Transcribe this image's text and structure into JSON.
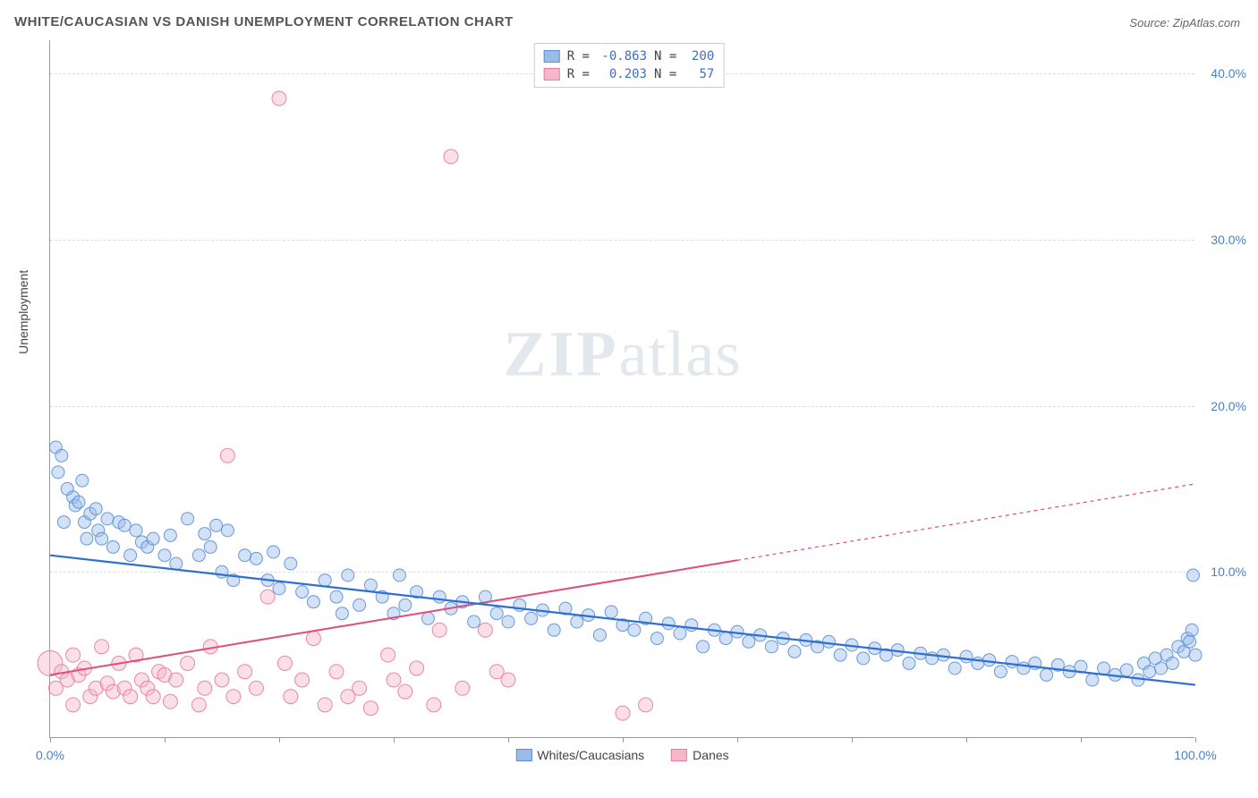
{
  "title": "WHITE/CAUCASIAN VS DANISH UNEMPLOYMENT CORRELATION CHART",
  "source_label": "Source:",
  "source_name": "ZipAtlas.com",
  "watermark_zip": "ZIP",
  "watermark_atlas": "atlas",
  "y_axis_label": "Unemployment",
  "chart": {
    "type": "scatter",
    "background_color": "#ffffff",
    "grid_color": "#dddddd",
    "axis_color": "#999999",
    "xlim": [
      0,
      100
    ],
    "ylim": [
      0,
      42
    ],
    "x_ticks": [
      0,
      10,
      20,
      30,
      40,
      50,
      60,
      70,
      80,
      90,
      100
    ],
    "x_tick_labels": {
      "0": "0.0%",
      "100": "100.0%"
    },
    "y_ticks": [
      10,
      20,
      30,
      40
    ],
    "y_tick_labels": {
      "10": "10.0%",
      "20": "20.0%",
      "30": "30.0%",
      "40": "40.0%"
    },
    "tick_label_color": "#4a7fc9",
    "tick_label_fontsize": 14,
    "axis_label_color": "#444444",
    "axis_label_fontsize": 14,
    "marker_style": "circle",
    "marker_opacity": 0.45,
    "marker_stroke_opacity": 0.9,
    "series": [
      {
        "id": "whites",
        "label": "Whites/Caucasians",
        "fill_color": "#9bbce8",
        "stroke_color": "#5a8fd6",
        "marker_radius": 7,
        "r_value": "-0.863",
        "n_value": "200",
        "trend": {
          "x1": 0,
          "y1": 11.0,
          "x2": 100,
          "y2": 3.2,
          "color": "#2e6fd1",
          "width": 2.2,
          "dash": "none"
        },
        "points": [
          [
            0.5,
            17.5
          ],
          [
            0.7,
            16.0
          ],
          [
            1.0,
            17.0
          ],
          [
            1.2,
            13.0
          ],
          [
            1.5,
            15.0
          ],
          [
            2.0,
            14.5
          ],
          [
            2.2,
            14.0
          ],
          [
            2.5,
            14.2
          ],
          [
            2.8,
            15.5
          ],
          [
            3.0,
            13.0
          ],
          [
            3.2,
            12.0
          ],
          [
            3.5,
            13.5
          ],
          [
            4.0,
            13.8
          ],
          [
            4.2,
            12.5
          ],
          [
            4.5,
            12.0
          ],
          [
            5.0,
            13.2
          ],
          [
            5.5,
            11.5
          ],
          [
            6.0,
            13.0
          ],
          [
            6.5,
            12.8
          ],
          [
            7.0,
            11.0
          ],
          [
            7.5,
            12.5
          ],
          [
            8.0,
            11.8
          ],
          [
            8.5,
            11.5
          ],
          [
            9.0,
            12.0
          ],
          [
            10.0,
            11.0
          ],
          [
            10.5,
            12.2
          ],
          [
            11.0,
            10.5
          ],
          [
            12.0,
            13.2
          ],
          [
            13.0,
            11.0
          ],
          [
            13.5,
            12.3
          ],
          [
            14.0,
            11.5
          ],
          [
            14.5,
            12.8
          ],
          [
            15.0,
            10.0
          ],
          [
            15.5,
            12.5
          ],
          [
            16.0,
            9.5
          ],
          [
            17.0,
            11.0
          ],
          [
            18.0,
            10.8
          ],
          [
            19.0,
            9.5
          ],
          [
            19.5,
            11.2
          ],
          [
            20.0,
            9.0
          ],
          [
            21.0,
            10.5
          ],
          [
            22.0,
            8.8
          ],
          [
            23.0,
            8.2
          ],
          [
            24.0,
            9.5
          ],
          [
            25.0,
            8.5
          ],
          [
            25.5,
            7.5
          ],
          [
            26.0,
            9.8
          ],
          [
            27.0,
            8.0
          ],
          [
            28.0,
            9.2
          ],
          [
            29.0,
            8.5
          ],
          [
            30.0,
            7.5
          ],
          [
            30.5,
            9.8
          ],
          [
            31.0,
            8.0
          ],
          [
            32.0,
            8.8
          ],
          [
            33.0,
            7.2
          ],
          [
            34.0,
            8.5
          ],
          [
            35.0,
            7.8
          ],
          [
            36.0,
            8.2
          ],
          [
            37.0,
            7.0
          ],
          [
            38.0,
            8.5
          ],
          [
            39.0,
            7.5
          ],
          [
            40.0,
            7.0
          ],
          [
            41.0,
            8.0
          ],
          [
            42.0,
            7.2
          ],
          [
            43.0,
            7.7
          ],
          [
            44.0,
            6.5
          ],
          [
            45.0,
            7.8
          ],
          [
            46.0,
            7.0
          ],
          [
            47.0,
            7.4
          ],
          [
            48.0,
            6.2
          ],
          [
            49.0,
            7.6
          ],
          [
            50.0,
            6.8
          ],
          [
            51.0,
            6.5
          ],
          [
            52.0,
            7.2
          ],
          [
            53.0,
            6.0
          ],
          [
            54.0,
            6.9
          ],
          [
            55.0,
            6.3
          ],
          [
            56.0,
            6.8
          ],
          [
            57.0,
            5.5
          ],
          [
            58.0,
            6.5
          ],
          [
            59.0,
            6.0
          ],
          [
            60.0,
            6.4
          ],
          [
            61.0,
            5.8
          ],
          [
            62.0,
            6.2
          ],
          [
            63.0,
            5.5
          ],
          [
            64.0,
            6.0
          ],
          [
            65.0,
            5.2
          ],
          [
            66.0,
            5.9
          ],
          [
            67.0,
            5.5
          ],
          [
            68.0,
            5.8
          ],
          [
            69.0,
            5.0
          ],
          [
            70.0,
            5.6
          ],
          [
            71.0,
            4.8
          ],
          [
            72.0,
            5.4
          ],
          [
            73.0,
            5.0
          ],
          [
            74.0,
            5.3
          ],
          [
            75.0,
            4.5
          ],
          [
            76.0,
            5.1
          ],
          [
            77.0,
            4.8
          ],
          [
            78.0,
            5.0
          ],
          [
            79.0,
            4.2
          ],
          [
            80.0,
            4.9
          ],
          [
            81.0,
            4.5
          ],
          [
            82.0,
            4.7
          ],
          [
            83.0,
            4.0
          ],
          [
            84.0,
            4.6
          ],
          [
            85.0,
            4.2
          ],
          [
            86.0,
            4.5
          ],
          [
            87.0,
            3.8
          ],
          [
            88.0,
            4.4
          ],
          [
            89.0,
            4.0
          ],
          [
            90.0,
            4.3
          ],
          [
            91.0,
            3.5
          ],
          [
            92.0,
            4.2
          ],
          [
            93.0,
            3.8
          ],
          [
            94.0,
            4.1
          ],
          [
            95.0,
            3.5
          ],
          [
            95.5,
            4.5
          ],
          [
            96.0,
            4.0
          ],
          [
            96.5,
            4.8
          ],
          [
            97.0,
            4.2
          ],
          [
            97.5,
            5.0
          ],
          [
            98.0,
            4.5
          ],
          [
            98.5,
            5.5
          ],
          [
            99.0,
            5.2
          ],
          [
            99.3,
            6.0
          ],
          [
            99.5,
            5.8
          ],
          [
            99.7,
            6.5
          ],
          [
            99.8,
            9.8
          ],
          [
            100.0,
            5.0
          ]
        ]
      },
      {
        "id": "danes",
        "label": "Danes",
        "fill_color": "#f5b8c8",
        "stroke_color": "#e87ba0",
        "marker_radius": 8,
        "r_value": "0.203",
        "n_value": "57",
        "trend": {
          "x1": 0,
          "y1": 3.8,
          "x2": 60,
          "y2": 10.7,
          "color": "#e14b7a",
          "width": 2.0,
          "dash": "none",
          "ext_x2": 100,
          "ext_y2": 15.3,
          "ext_dash": "4,4"
        },
        "points": [
          [
            0.0,
            4.5,
            14
          ],
          [
            0.5,
            3.0
          ],
          [
            1.0,
            4.0
          ],
          [
            1.5,
            3.5
          ],
          [
            2.0,
            2.0
          ],
          [
            2.0,
            5.0
          ],
          [
            2.5,
            3.8
          ],
          [
            3.0,
            4.2
          ],
          [
            3.5,
            2.5
          ],
          [
            4.0,
            3.0
          ],
          [
            4.5,
            5.5
          ],
          [
            5.0,
            3.3
          ],
          [
            5.5,
            2.8
          ],
          [
            6.0,
            4.5
          ],
          [
            6.5,
            3.0
          ],
          [
            7.0,
            2.5
          ],
          [
            7.5,
            5.0
          ],
          [
            8.0,
            3.5
          ],
          [
            8.5,
            3.0
          ],
          [
            9.0,
            2.5
          ],
          [
            9.5,
            4.0
          ],
          [
            10.0,
            3.8
          ],
          [
            10.5,
            2.2
          ],
          [
            11.0,
            3.5
          ],
          [
            12.0,
            4.5
          ],
          [
            13.0,
            2.0
          ],
          [
            13.5,
            3.0
          ],
          [
            14.0,
            5.5
          ],
          [
            15.0,
            3.5
          ],
          [
            15.5,
            17.0
          ],
          [
            16.0,
            2.5
          ],
          [
            17.0,
            4.0
          ],
          [
            18.0,
            3.0
          ],
          [
            19.0,
            8.5
          ],
          [
            20.0,
            38.5
          ],
          [
            20.5,
            4.5
          ],
          [
            21.0,
            2.5
          ],
          [
            22.0,
            3.5
          ],
          [
            23.0,
            6.0
          ],
          [
            24.0,
            2.0
          ],
          [
            25.0,
            4.0
          ],
          [
            26.0,
            2.5
          ],
          [
            27.0,
            3.0
          ],
          [
            28.0,
            1.8
          ],
          [
            29.5,
            5.0
          ],
          [
            30.0,
            3.5
          ],
          [
            31.0,
            2.8
          ],
          [
            32.0,
            4.2
          ],
          [
            33.5,
            2.0
          ],
          [
            34.0,
            6.5
          ],
          [
            35.0,
            35.0
          ],
          [
            36.0,
            3.0
          ],
          [
            38.0,
            6.5
          ],
          [
            39.0,
            4.0
          ],
          [
            40.0,
            3.5
          ],
          [
            50.0,
            1.5
          ],
          [
            52.0,
            2.0
          ]
        ]
      }
    ],
    "legend_top": {
      "r_label": "R =",
      "n_label": "N =",
      "border_color": "#cccccc",
      "value_color": "#3b6fc4"
    },
    "legend_bottom": {
      "items": [
        "whites",
        "danes"
      ]
    }
  }
}
